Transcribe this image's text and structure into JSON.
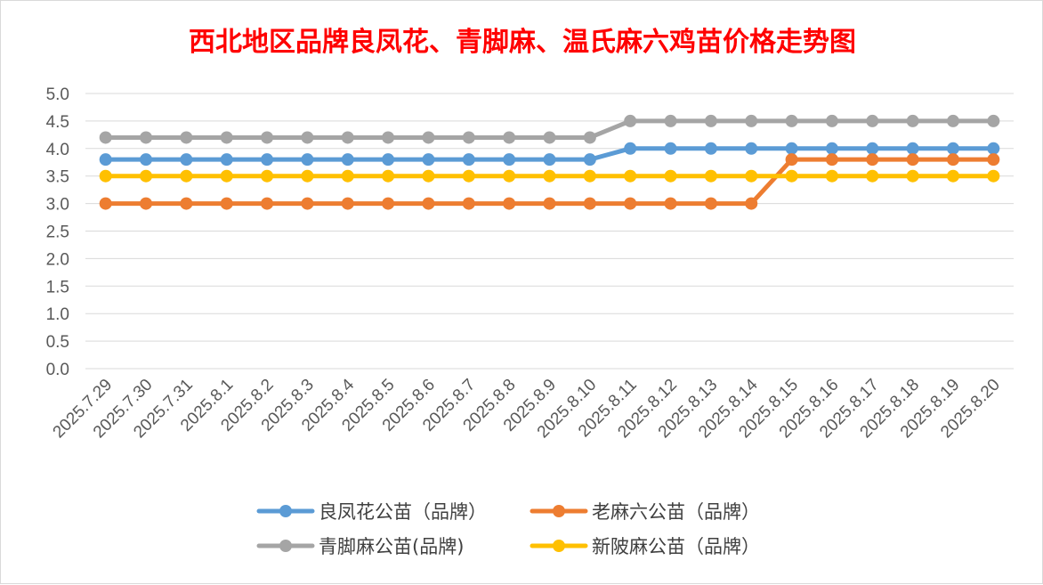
{
  "chart_data": {
    "type": "line",
    "title": "西北地区品牌良凤花、青脚麻、温氏麻六鸡苗价格走势图",
    "xlabel": "",
    "ylabel": "",
    "ylim": [
      0,
      5
    ],
    "y_ticks": [
      "0.0",
      "0.5",
      "1.0",
      "1.5",
      "2.0",
      "2.5",
      "3.0",
      "3.5",
      "4.0",
      "4.5",
      "5.0"
    ],
    "grid": true,
    "legend_position": "bottom",
    "categories": [
      "2025.7.29",
      "2025.7.30",
      "2025.7.31",
      "2025.8.1",
      "2025.8.2",
      "2025.8.3",
      "2025.8.4",
      "2025.8.5",
      "2025.8.6",
      "2025.8.7",
      "2025.8.8",
      "2025.8.9",
      "2025.8.10",
      "2025.8.11",
      "2025.8.12",
      "2025.8.13",
      "2025.8.14",
      "2025.8.15",
      "2025.8.16",
      "2025.8.17",
      "2025.8.18",
      "2025.8.19",
      "2025.8.20"
    ],
    "series": [
      {
        "name": "良凤花公苗（品牌）",
        "color": "#5b9bd5",
        "values": [
          3.8,
          3.8,
          3.8,
          3.8,
          3.8,
          3.8,
          3.8,
          3.8,
          3.8,
          3.8,
          3.8,
          3.8,
          3.8,
          4.0,
          4.0,
          4.0,
          4.0,
          4.0,
          4.0,
          4.0,
          4.0,
          4.0,
          4.0
        ]
      },
      {
        "name": "老麻六公苗（品牌）",
        "color": "#ed7d31",
        "values": [
          3.0,
          3.0,
          3.0,
          3.0,
          3.0,
          3.0,
          3.0,
          3.0,
          3.0,
          3.0,
          3.0,
          3.0,
          3.0,
          3.0,
          3.0,
          3.0,
          3.0,
          3.8,
          3.8,
          3.8,
          3.8,
          3.8,
          3.8
        ]
      },
      {
        "name": "青脚麻公苗(品牌)",
        "color": "#a5a5a5",
        "values": [
          4.2,
          4.2,
          4.2,
          4.2,
          4.2,
          4.2,
          4.2,
          4.2,
          4.2,
          4.2,
          4.2,
          4.2,
          4.2,
          4.5,
          4.5,
          4.5,
          4.5,
          4.5,
          4.5,
          4.5,
          4.5,
          4.5,
          4.5
        ]
      },
      {
        "name": "新陂麻公苗（品牌）",
        "color": "#ffc000",
        "values": [
          3.5,
          3.5,
          3.5,
          3.5,
          3.5,
          3.5,
          3.5,
          3.5,
          3.5,
          3.5,
          3.5,
          3.5,
          3.5,
          3.5,
          3.5,
          3.5,
          3.5,
          3.5,
          3.5,
          3.5,
          3.5,
          3.5,
          3.5
        ]
      }
    ]
  }
}
